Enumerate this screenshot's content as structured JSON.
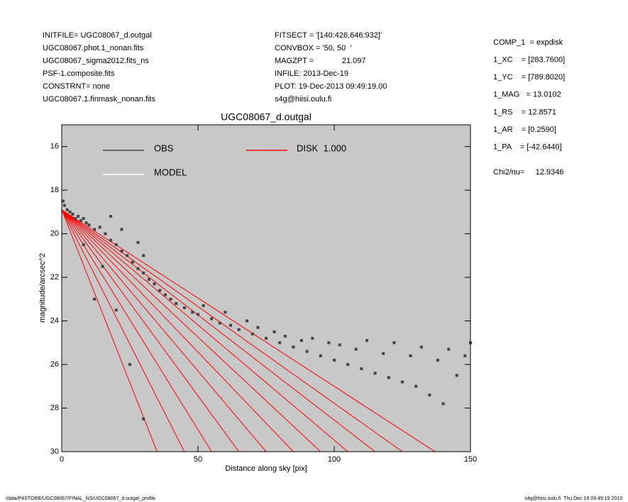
{
  "header": {
    "left": [
      "INITFILE= UGC08067_d.outgal",
      "UGC08067.phot.1_nonan.fits",
      "UGC08067_sigma2012.fits_ns",
      "PSF-1.composite.fits",
      "CONSTRNT= none",
      "UGC08067.1.finmask_nonan.fits"
    ],
    "middle": [
      "FITSECT = '[140:426,646:932]'",
      "CONVBOX = '50, 50  '",
      "MAGZPT =             21.097",
      "INFILE: 2013-Dec-19",
      "PLOT: 19-Dec-2013 09:49:19.00",
      "s4g@hiisi.oulu.fi"
    ],
    "right": [
      "COMP_1  = expdisk",
      "1_XC    = [283.7600]",
      "1_YC    = [789.8020]",
      "1_MAG   = 13.0102",
      "1_RS    = 12.8571",
      "1_AR    = [0.2590]",
      "1_PA    = [-42.6440]"
    ],
    "chi2": "Chi2/nu=     12.9346"
  },
  "footer": {
    "left": "/data/P4STORE/UGC08067/FINAL_NS/UGC08067_d.outgal_profile",
    "right": "s4g@hiisi.oulu.fi  Thu Dec 19 09:49:19 2013"
  },
  "chart_data": {
    "type": "scatter",
    "title": "UGC08067_d.outgal",
    "x_label": "Distance along sky [pix]",
    "y_label": "magnitude/arcsec^2",
    "xlim": [
      0,
      150
    ],
    "xticks": [
      0,
      50,
      100,
      150
    ],
    "ylim": [
      30,
      15
    ],
    "yticks": [
      16,
      18,
      20,
      22,
      24,
      26,
      28,
      30
    ],
    "background": "#c8c8c8",
    "series": [
      {
        "name": "OBS",
        "color": "#444444",
        "x": [
          0.5,
          1,
          2,
          3,
          4,
          5,
          6,
          7,
          8,
          9,
          10,
          12,
          14,
          16,
          18,
          20,
          22,
          24,
          26,
          28,
          30,
          32,
          34,
          36,
          38,
          40,
          42,
          45,
          48,
          50,
          52,
          55,
          58,
          60,
          62,
          65,
          68,
          70,
          72,
          75,
          78,
          80,
          82,
          85,
          88,
          90,
          92,
          95,
          98,
          100,
          102,
          105,
          108,
          110,
          112,
          115,
          118,
          120,
          122,
          125,
          128,
          130,
          132,
          135,
          138,
          140,
          142,
          145,
          148,
          150,
          18,
          22,
          28,
          30,
          15,
          20,
          25,
          30,
          8,
          12
        ],
        "values": [
          18.5,
          18.7,
          18.9,
          19.0,
          19.1,
          19.3,
          19.2,
          19.4,
          19.3,
          19.5,
          19.6,
          19.8,
          19.7,
          20.0,
          20.3,
          20.5,
          20.8,
          21.0,
          21.3,
          21.6,
          21.8,
          22.1,
          22.3,
          22.6,
          22.8,
          23.0,
          23.2,
          23.4,
          23.6,
          23.7,
          23.3,
          23.9,
          24.1,
          23.6,
          24.2,
          24.4,
          24.0,
          24.6,
          24.3,
          24.8,
          24.5,
          25.0,
          24.7,
          25.2,
          24.9,
          25.4,
          24.8,
          25.6,
          25.0,
          25.8,
          25.1,
          26.0,
          25.3,
          26.2,
          24.9,
          26.4,
          25.5,
          26.6,
          25.0,
          26.8,
          25.6,
          27.0,
          25.2,
          27.4,
          25.8,
          27.8,
          25.3,
          26.5,
          25.6,
          25.0,
          19.2,
          19.8,
          20.4,
          21.0,
          21.5,
          23.5,
          26.0,
          28.5,
          20.5,
          23.0
        ]
      },
      {
        "name": "MODEL",
        "color": "#ffffff"
      },
      {
        "name": "DISK  1.000",
        "color": "#ff0000",
        "lines": [
          {
            "x": [
              0,
              35
            ],
            "values": [
              18.9,
              30
            ]
          },
          {
            "x": [
              0,
              45
            ],
            "values": [
              18.9,
              30
            ]
          },
          {
            "x": [
              0,
              55
            ],
            "values": [
              18.9,
              30
            ]
          },
          {
            "x": [
              0,
              65
            ],
            "values": [
              18.9,
              30
            ]
          },
          {
            "x": [
              0,
              75
            ],
            "values": [
              18.9,
              30
            ]
          },
          {
            "x": [
              0,
              85
            ],
            "values": [
              18.9,
              30
            ]
          },
          {
            "x": [
              0,
              95
            ],
            "values": [
              18.9,
              30
            ]
          },
          {
            "x": [
              0,
              105
            ],
            "values": [
              18.9,
              30
            ]
          },
          {
            "x": [
              0,
              115
            ],
            "values": [
              18.9,
              30
            ]
          },
          {
            "x": [
              0,
              125
            ],
            "values": [
              18.9,
              30
            ]
          },
          {
            "x": [
              0,
              137
            ],
            "values": [
              18.9,
              30
            ]
          }
        ]
      }
    ]
  }
}
